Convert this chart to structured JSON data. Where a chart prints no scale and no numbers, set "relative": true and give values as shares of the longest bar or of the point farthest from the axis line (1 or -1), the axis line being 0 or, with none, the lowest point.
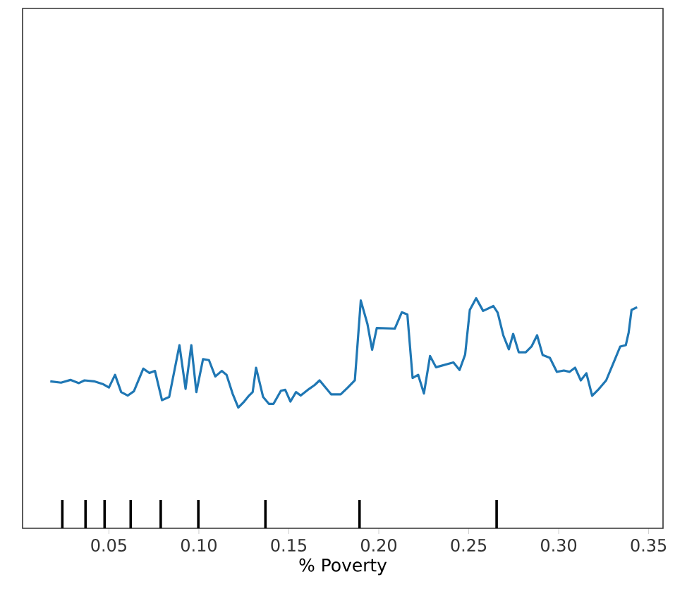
{
  "chart_data": {
    "type": "line",
    "xlabel": "% Poverty",
    "relative": true,
    "xlim": [
      0.002,
      0.358
    ],
    "xticks": [
      0.05,
      {
        "value": 0.1,
        "label": "0.10"
      },
      0.15,
      {
        "value": 0.2,
        "label": "0.20"
      },
      0.25,
      {
        "value": 0.3,
        "label": "0.30"
      },
      0.35
    ],
    "series": [
      {
        "color": "#1f77b4",
        "x": [
          0.0174,
          0.0234,
          0.0286,
          0.0333,
          0.0364,
          0.0417,
          0.0469,
          0.05,
          0.0534,
          0.0568,
          0.0605,
          0.0639,
          0.0691,
          0.0725,
          0.0756,
          0.0795,
          0.0835,
          0.0892,
          0.0926,
          0.0958,
          0.0986,
          0.1023,
          0.1056,
          0.1091,
          0.1127,
          0.1154,
          0.1187,
          0.1219,
          0.1252,
          0.1279,
          0.1299,
          0.1318,
          0.1357,
          0.1389,
          0.1415,
          0.1456,
          0.148,
          0.1509,
          0.154,
          0.1566,
          0.1613,
          0.1644,
          0.1671,
          0.171,
          0.1736,
          0.1788,
          0.1828,
          0.1867,
          0.19,
          0.1937,
          0.1963,
          0.1989,
          0.2089,
          0.2128,
          0.2159,
          0.2188,
          0.2219,
          0.2251,
          0.2285,
          0.2318,
          0.2415,
          0.2449,
          0.248,
          0.2506,
          0.2541,
          0.258,
          0.2637,
          0.2661,
          0.2692,
          0.2723,
          0.2747,
          0.2778,
          0.2817,
          0.2849,
          0.288,
          0.2911,
          0.2951,
          0.299,
          0.3029,
          0.306,
          0.3091,
          0.3123,
          0.3154,
          0.3186,
          0.3224,
          0.3264,
          0.3303,
          0.3342,
          0.3373,
          0.3389,
          0.3405,
          0.3436
        ],
        "values": [
          0.639,
          0.633,
          0.645,
          0.631,
          0.643,
          0.639,
          0.626,
          0.612,
          0.667,
          0.592,
          0.577,
          0.596,
          0.694,
          0.675,
          0.684,
          0.557,
          0.571,
          0.796,
          0.606,
          0.796,
          0.592,
          0.735,
          0.731,
          0.66,
          0.684,
          0.667,
          0.586,
          0.525,
          0.551,
          0.577,
          0.592,
          0.698,
          0.571,
          0.541,
          0.541,
          0.598,
          0.602,
          0.551,
          0.592,
          0.577,
          0.606,
          0.623,
          0.643,
          0.606,
          0.582,
          0.582,
          0.612,
          0.643,
          0.99,
          0.888,
          0.776,
          0.871,
          0.868,
          0.939,
          0.929,
          0.653,
          0.667,
          0.586,
          0.749,
          0.7,
          0.721,
          0.688,
          0.755,
          0.949,
          1,
          0.945,
          0.966,
          0.937,
          0.839,
          0.778,
          0.845,
          0.765,
          0.765,
          0.79,
          0.839,
          0.753,
          0.741,
          0.68,
          0.686,
          0.68,
          0.698,
          0.643,
          0.674,
          0.576,
          0.606,
          0.643,
          0.716,
          0.79,
          0.796,
          0.851,
          0.949,
          0.961
        ]
      }
    ],
    "ref_lines": [
      {
        "axis": "x",
        "value": 0.0241,
        "color": "#000000"
      },
      {
        "axis": "x",
        "value": 0.037,
        "color": "#000000"
      },
      {
        "axis": "x",
        "value": 0.0476,
        "color": "#000000"
      },
      {
        "axis": "x",
        "value": 0.0621,
        "color": "#000000"
      },
      {
        "axis": "x",
        "value": 0.0788,
        "color": "#000000"
      },
      {
        "axis": "x",
        "value": 0.0997,
        "color": "#000000"
      },
      {
        "axis": "x",
        "value": 0.137,
        "color": "#000000"
      },
      {
        "axis": "x",
        "value": 0.1893,
        "color": "#000000"
      },
      {
        "axis": "x",
        "value": 0.2655,
        "color": "#000000"
      }
    ],
    "marker": "none",
    "line_style": "solid"
  }
}
